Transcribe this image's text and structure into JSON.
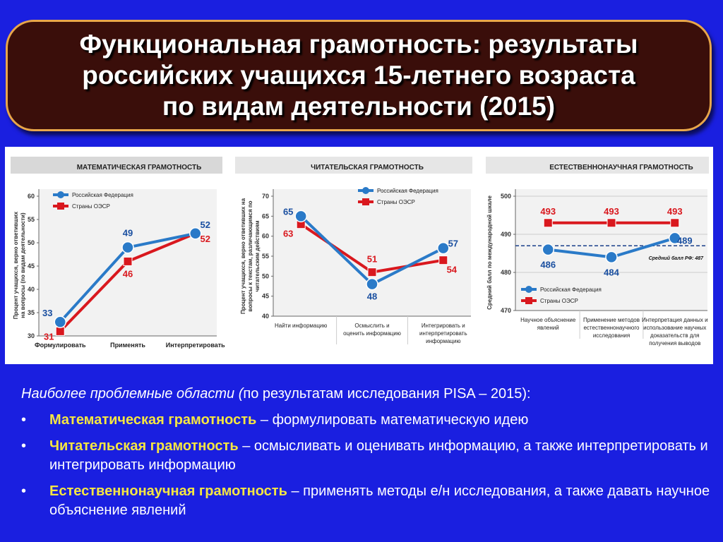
{
  "title": {
    "line1": "Функциональная грамотность: результаты",
    "line2": "российских учащихся 15-летнего возраста",
    "line3": "по видам деятельности (2015)"
  },
  "notes": {
    "lead_italic": "Наиболее проблемные области (",
    "lead_rest": "по результатам исследования  PISA – 2015):",
    "items": [
      {
        "bullet": "•",
        "term": "Математическая грамотность",
        "rest": " – формулировать математическую идею"
      },
      {
        "bullet": "•",
        "term": "Читательская грамотность",
        "rest": " – осмысливать и оценивать информацию, а также интерпретировать и интегрировать информацию"
      },
      {
        "bullet": "•",
        "term": "Естественнонаучная грамотность",
        "rest": " – применять методы е/н исследования, а также давать научное объяснение явлений"
      }
    ]
  },
  "colors": {
    "russia": "#2a7ac8",
    "oecd": "#d9181e",
    "avg": "#1a3f8a"
  },
  "chart_data": [
    {
      "type": "line",
      "title": "МАТЕМАТИЧЕСКАЯ ГРАМОТНОСТЬ",
      "ylabel": "Процент учащихся, верно ответивших на вопросы (по видам деятельности)",
      "categories": [
        "Формулировать",
        "Применять",
        "Интерпретировать"
      ],
      "yticks": [
        30,
        35,
        40,
        45,
        50,
        55,
        60
      ],
      "ylim": [
        30,
        60
      ],
      "series": [
        {
          "name": "Российская Федерация",
          "values": [
            33,
            49,
            52
          ]
        },
        {
          "name": "Страны ОЭСР",
          "values": [
            31,
            46,
            52
          ]
        }
      ]
    },
    {
      "type": "line",
      "title": "ЧИТАТЕЛЬСКАЯ ГРАМОТНОСТЬ",
      "ylabel": "Процент учащихся, верно ответивших на вопросы к текстам, различающимся по читательским действиям",
      "categories": [
        "Найти информацию",
        "Осмыслить и оценить информацию",
        "Интегрировать и интерпретировать информацию"
      ],
      "yticks": [
        40,
        45,
        50,
        55,
        60,
        65,
        70
      ],
      "ylim": [
        40,
        70
      ],
      "series": [
        {
          "name": "Российская Федерация",
          "values": [
            65,
            48,
            57
          ]
        },
        {
          "name": "Страны ОЭСР",
          "values": [
            63,
            51,
            54
          ]
        }
      ]
    },
    {
      "type": "line",
      "title": "ЕСТЕСТВЕННОНАУЧНАЯ ГРАМОТНОСТЬ",
      "ylabel": "Средний балл по международной шкале",
      "categories": [
        "Научное объяснение явлений",
        "Применение методов естественнонаучного исследования",
        "Интерпретация данных и использование научных доказательств для получения выводов"
      ],
      "yticks": [
        470,
        480,
        490,
        500
      ],
      "ylim": [
        470,
        500
      ],
      "series": [
        {
          "name": "Российская Федерация",
          "values": [
            486,
            484,
            489
          ]
        },
        {
          "name": "Страны ОЭСР",
          "values": [
            493,
            493,
            493
          ]
        }
      ],
      "reference_line": {
        "label": "Средний балл РФ: 487",
        "value": 487
      }
    }
  ]
}
